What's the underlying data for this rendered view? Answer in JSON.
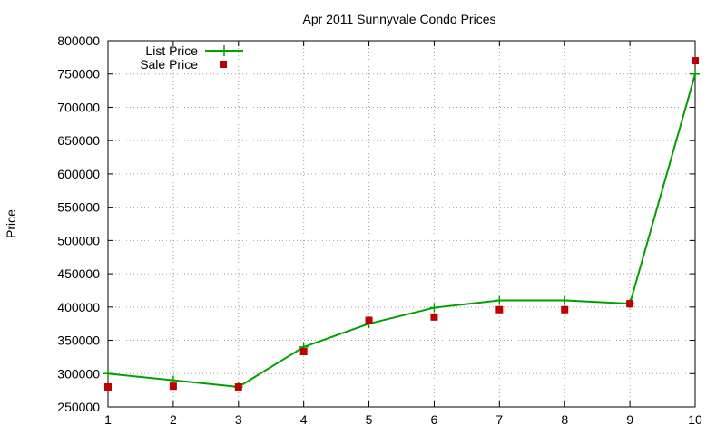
{
  "chart_data": {
    "type": "line",
    "title": "Apr 2011 Sunnyvale Condo Prices",
    "xlabel": "",
    "ylabel": "Price",
    "x": [
      1,
      2,
      3,
      4,
      5,
      6,
      7,
      8,
      9,
      10
    ],
    "xlim": [
      1,
      10
    ],
    "ylim": [
      250000,
      800000
    ],
    "yticks": [
      250000,
      300000,
      350000,
      400000,
      450000,
      500000,
      550000,
      600000,
      650000,
      700000,
      750000,
      800000
    ],
    "grid": true,
    "legend_position": "top-left",
    "series": [
      {
        "name": "List Price",
        "style": "line-with-plus-markers",
        "color": "#00a000",
        "values": [
          300000,
          290000,
          280000,
          340000,
          375000,
          399000,
          410000,
          410000,
          405000,
          750000
        ]
      },
      {
        "name": "Sale Price",
        "style": "square-markers",
        "color": "#c00000",
        "values": [
          280000,
          281000,
          280000,
          333000,
          380000,
          385000,
          396000,
          396000,
          405000,
          770000
        ]
      }
    ]
  }
}
